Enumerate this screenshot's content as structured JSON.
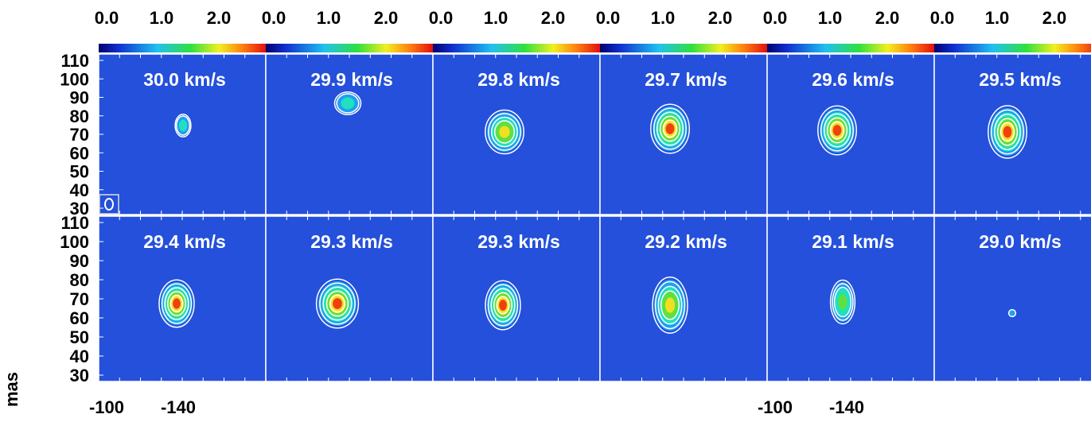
{
  "colorbar_ticks": [
    "0.0",
    "1.0",
    "2.0"
  ],
  "y_ticks": [
    "110",
    "100",
    "90",
    "80",
    "70",
    "60",
    "50",
    "40",
    "30"
  ],
  "y_label": "mas",
  "x_ticks": [
    "-100",
    "-140"
  ],
  "panels": [
    "30.0 km/s",
    "29.9 km/s",
    "29.8 km/s",
    "29.7 km/s",
    "29.6 km/s",
    "29.5 km/s",
    "29.4 km/s",
    "29.3 km/s",
    "29.3 km/s",
    "29.2 km/s",
    "29.1 km/s",
    "29.0 km/s"
  ]
}
